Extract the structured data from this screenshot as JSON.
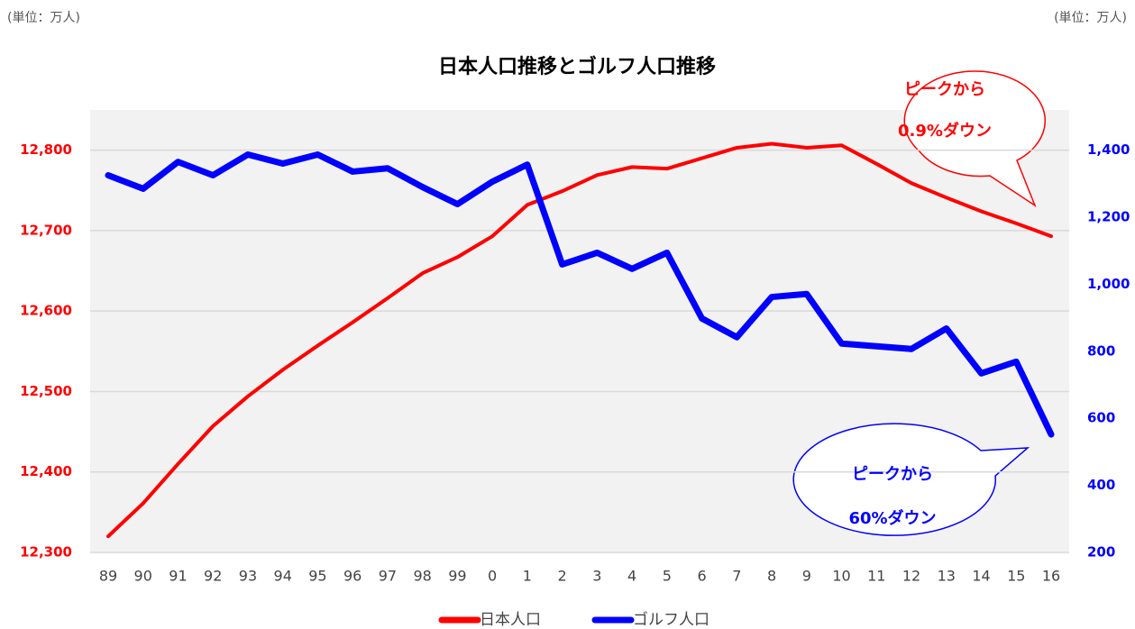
{
  "chart_data": {
    "type": "line",
    "title": "日本人口推移とゴルフ人口推移",
    "y_unit_label": "(単位：万人)",
    "y2_unit_label": "(単位：万人)",
    "categories": [
      "89",
      "90",
      "91",
      "92",
      "93",
      "94",
      "95",
      "96",
      "97",
      "98",
      "99",
      "0",
      "1",
      "2",
      "3",
      "4",
      "5",
      "6",
      "7",
      "8",
      "9",
      "10",
      "11",
      "12",
      "13",
      "14",
      "15",
      "16"
    ],
    "series": [
      {
        "name": "日本人口",
        "color": "#ff0000",
        "axis": "y",
        "values": [
          12320,
          12361,
          12410,
          12457,
          12494,
          12527,
          12557,
          12586,
          12616,
          12647,
          12667,
          12693,
          12732,
          12749,
          12769,
          12779,
          12777,
          12790,
          12803,
          12808,
          12803,
          12806,
          12783,
          12759,
          12741,
          12724,
          12709,
          12693
        ]
      },
      {
        "name": "ゴルフ人口",
        "color": "#0000ff",
        "axis": "y2",
        "values": [
          1325,
          1285,
          1365,
          1325,
          1387,
          1360,
          1387,
          1336,
          1346,
          1290,
          1239,
          1306,
          1357,
          1059,
          1094,
          1046,
          1094,
          898,
          842,
          962,
          971,
          823,
          815,
          807,
          868,
          734,
          769,
          552
        ]
      }
    ],
    "ylim": [
      12300,
      12850
    ],
    "yticks": [
      {
        "value": 12300,
        "label": "12,300"
      },
      {
        "value": 12400,
        "label": "12,400"
      },
      {
        "value": 12500,
        "label": "12,500"
      },
      {
        "value": 12600,
        "label": "12,600"
      },
      {
        "value": 12700,
        "label": "12,700"
      },
      {
        "value": 12800,
        "label": "12,800"
      }
    ],
    "y2lim": [
      200,
      1520
    ],
    "y2ticks": [
      200,
      400,
      600,
      800,
      {
        "value": 1000,
        "label": "1,000"
      },
      {
        "value": 1200,
        "label": "1,200"
      },
      {
        "value": 1400,
        "label": "1,400"
      }
    ],
    "grid": true,
    "legend": "bottom",
    "annotations": [
      {
        "lines": [
          "ピークから",
          "0.9%ダウン"
        ],
        "color": "#ff0000"
      },
      {
        "lines": [
          "ピークから",
          "60%ダウン"
        ],
        "color": "#0000ff"
      }
    ]
  }
}
